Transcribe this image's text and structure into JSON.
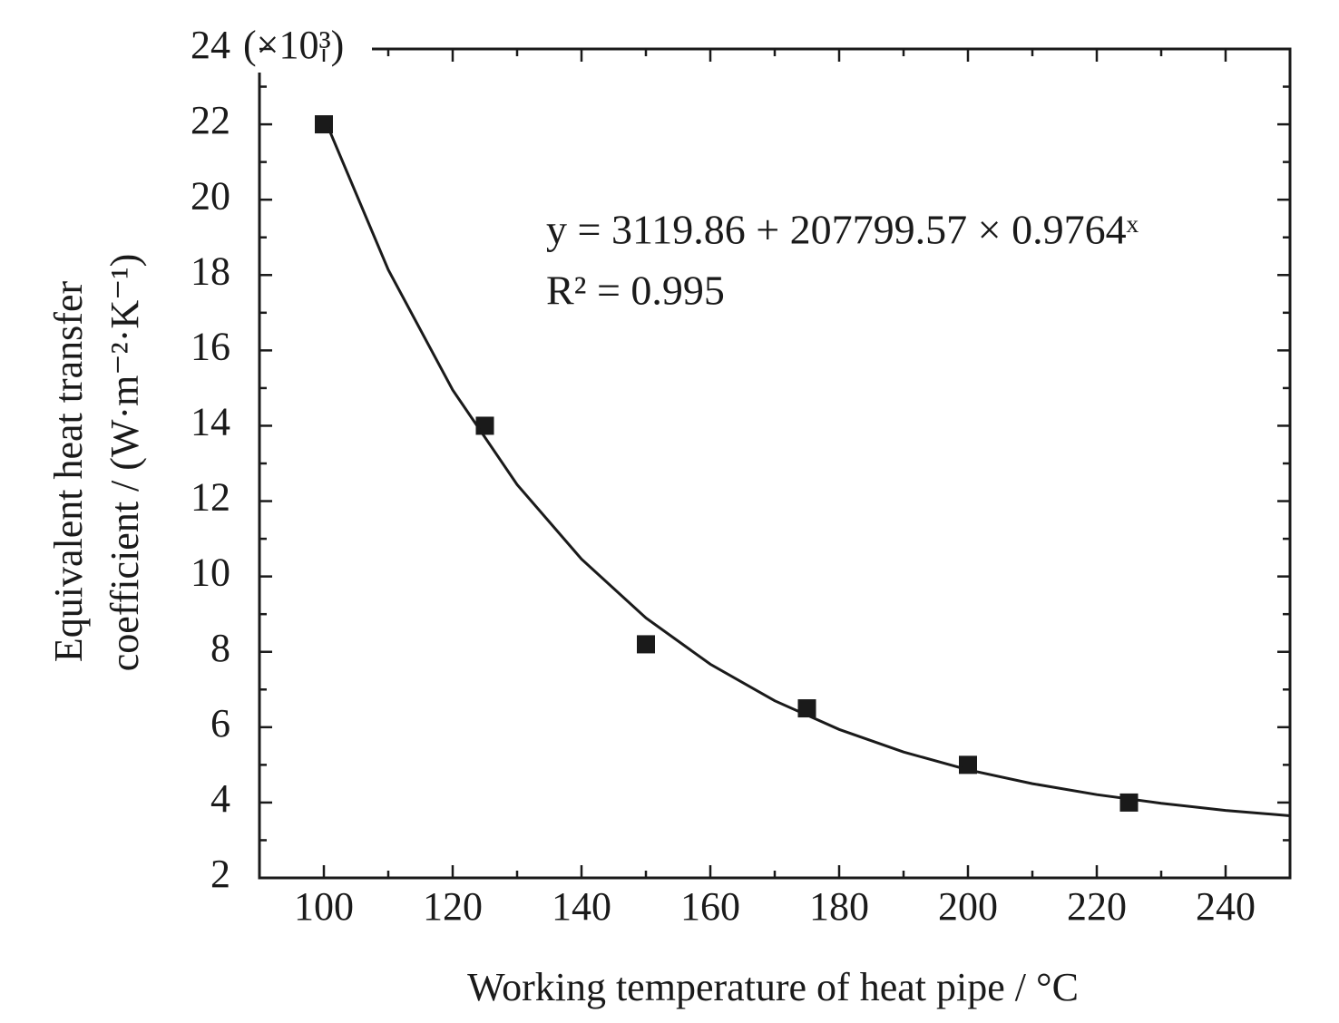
{
  "chart_data": {
    "type": "scatter",
    "x_label": "Working temperature of heat pipe / °C",
    "y_label": [
      "Equivalent heat transfer",
      "coefficient / (W·m⁻²·K⁻¹)"
    ],
    "y_multiplier": "(×10³)",
    "annotations": [
      "y = 3119.86 + 207799.57 × 0.9764ˣ",
      "R² = 0.995"
    ],
    "series": [
      {
        "type": "scatter",
        "color": "#1a1a1a",
        "x": [
          100,
          125,
          150,
          175,
          200,
          225
        ],
        "values": [
          22,
          14,
          8.2,
          6.5,
          5,
          4
        ]
      },
      {
        "type": "line",
        "color": "#1a1a1a",
        "x": [
          100,
          110,
          120,
          130,
          140,
          150,
          160,
          170,
          180,
          190,
          200,
          210,
          220,
          230,
          240,
          250
        ],
        "values": [
          22.19,
          18.14,
          14.95,
          12.44,
          10.46,
          8.9,
          7.67,
          6.7,
          5.94,
          5.34,
          4.87,
          4.5,
          4.21,
          3.98,
          3.79,
          3.65
        ]
      }
    ],
    "xlim": [
      90,
      250
    ],
    "xticks": [
      100,
      120,
      140,
      160,
      180,
      200,
      220,
      240
    ],
    "ylim": [
      2,
      24
    ],
    "yticks": [
      2,
      4,
      6,
      8,
      10,
      12,
      14,
      16,
      18,
      20,
      22,
      24
    ]
  }
}
